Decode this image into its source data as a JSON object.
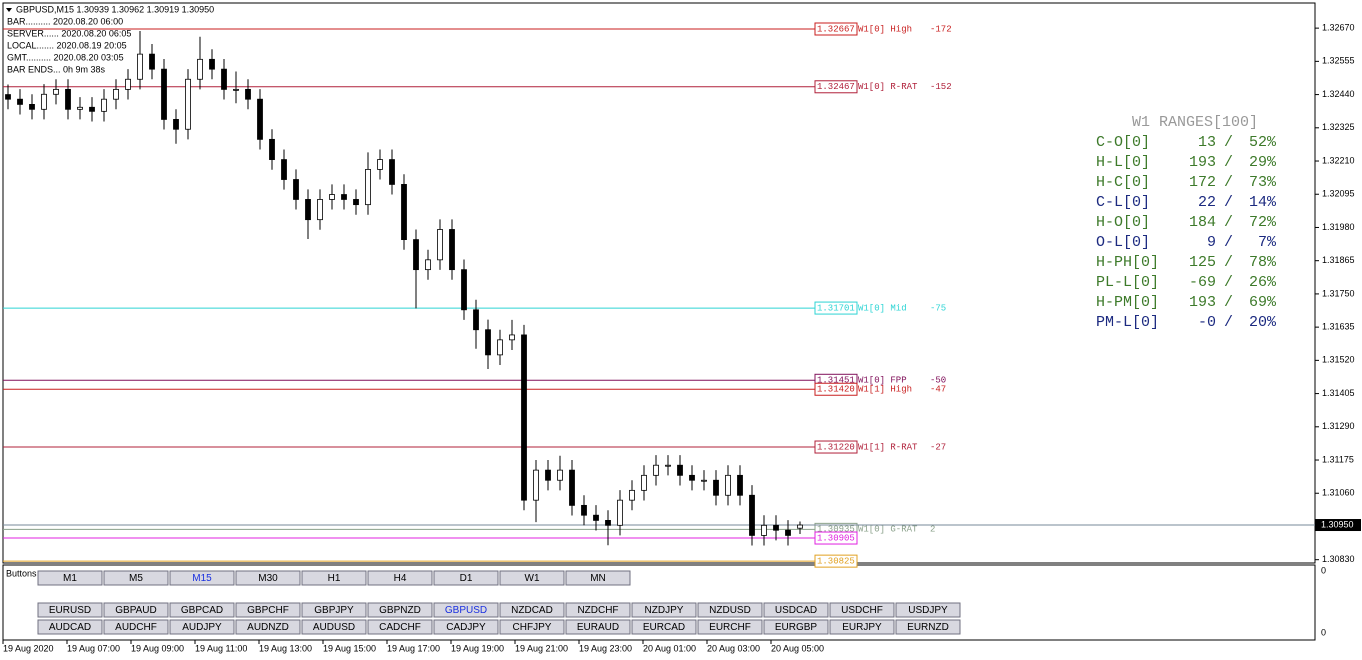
{
  "header": {
    "symbol": "GBPUSD,M15  1.30939 1.30962 1.30919 1.30950",
    "info": [
      "BAR.......... 2020.08.20 06:00",
      "SERVER...... 2020.08.20 06:05",
      "LOCAL....... 2020.08.19 20:05",
      "GMT.......... 2020.08.20 03:05",
      "BAR ENDS... 0h 9m 38s"
    ]
  },
  "chart_data": {
    "type": "candlestick",
    "open": [
      1.3244,
      1.32424,
      1.32406,
      1.32389,
      1.32441,
      1.32458,
      1.32389,
      1.32396,
      1.32382,
      1.32424,
      1.32458,
      1.32493,
      1.3258,
      1.32528,
      1.32354,
      1.3232,
      1.32493,
      1.32562,
      1.32528,
      1.32458,
      1.32458,
      1.32424,
      1.32285,
      1.32215,
      1.32146,
      1.32077,
      1.32007,
      1.32077,
      1.32094,
      1.32077,
      1.32059,
      1.32181,
      1.32215,
      1.32129,
      1.31938,
      1.31834,
      1.31868,
      1.31973,
      1.31834,
      1.31695,
      1.31626,
      1.31539,
      1.31591,
      1.31608,
      1.31036,
      1.3114,
      1.31105,
      1.3114,
      1.31018,
      1.30984,
      1.30966,
      1.30949,
      1.31036,
      1.3107,
      1.31122,
      1.31157,
      1.31157,
      1.31122,
      1.31105,
      1.31105,
      1.31053,
      1.31122,
      1.31053,
      1.30914,
      1.30949,
      1.30932,
      1.30939
    ],
    "high": [
      1.32475,
      1.32459,
      1.32441,
      1.32476,
      1.32493,
      1.32493,
      1.32431,
      1.32431,
      1.32459,
      1.32493,
      1.32528,
      1.3266,
      1.32615,
      1.32563,
      1.32389,
      1.32528,
      1.3264,
      1.32597,
      1.32563,
      1.3252,
      1.32493,
      1.32459,
      1.3232,
      1.3225,
      1.32181,
      1.32112,
      1.32112,
      1.32129,
      1.32129,
      1.32112,
      1.3224,
      1.3225,
      1.3225,
      1.32164,
      1.31973,
      1.31903,
      1.32008,
      1.32008,
      1.31869,
      1.3173,
      1.31661,
      1.31626,
      1.3166,
      1.31643,
      1.31175,
      1.31175,
      1.3119,
      1.31175,
      1.31053,
      1.31019,
      1.31001,
      1.31071,
      1.31105,
      1.31157,
      1.31192,
      1.31192,
      1.31192,
      1.31157,
      1.3114,
      1.3114,
      1.31157,
      1.31157,
      1.31088,
      1.30984,
      1.30984,
      1.30967,
      1.30962
    ],
    "low": [
      1.32389,
      1.32371,
      1.32354,
      1.32354,
      1.32406,
      1.32354,
      1.32354,
      1.32347,
      1.32347,
      1.32389,
      1.32423,
      1.32458,
      1.32493,
      1.32319,
      1.3227,
      1.32285,
      1.32458,
      1.32493,
      1.32423,
      1.3241,
      1.32389,
      1.3225,
      1.3218,
      1.32111,
      1.32042,
      1.3194,
      1.31972,
      1.32042,
      1.32042,
      1.32024,
      1.32024,
      1.32146,
      1.32094,
      1.31903,
      1.317,
      1.31799,
      1.31833,
      1.31799,
      1.3166,
      1.3156,
      1.3149,
      1.31504,
      1.31556,
      1.31001,
      1.3096,
      1.3107,
      1.3107,
      1.30983,
      1.30949,
      1.30931,
      1.3088,
      1.30914,
      1.31001,
      1.31035,
      1.31087,
      1.31122,
      1.31087,
      1.3107,
      1.3107,
      1.31018,
      1.31018,
      1.31018,
      1.30879,
      1.30879,
      1.30897,
      1.30879,
      1.30919
    ],
    "close": [
      1.32424,
      1.32406,
      1.32389,
      1.32441,
      1.32458,
      1.32389,
      1.32396,
      1.32382,
      1.32424,
      1.32458,
      1.32493,
      1.3258,
      1.32528,
      1.32354,
      1.3232,
      1.32493,
      1.32562,
      1.32528,
      1.32458,
      1.32458,
      1.32424,
      1.32285,
      1.32215,
      1.32146,
      1.32077,
      1.32007,
      1.32077,
      1.32094,
      1.32077,
      1.32059,
      1.32181,
      1.32215,
      1.32129,
      1.31938,
      1.31834,
      1.31868,
      1.31973,
      1.31834,
      1.31695,
      1.31626,
      1.31539,
      1.31591,
      1.31608,
      1.31036,
      1.3114,
      1.31105,
      1.3114,
      1.31018,
      1.30984,
      1.30966,
      1.30949,
      1.31036,
      1.3107,
      1.31122,
      1.31157,
      1.31157,
      1.31122,
      1.31105,
      1.31105,
      1.31053,
      1.31122,
      1.31053,
      1.30914,
      1.30949,
      1.30932,
      1.30914,
      1.3095
    ],
    "up_color": "#ffffff",
    "down_color": "#000000",
    "wick_color": "#000000",
    "ylim": [
      1.30822,
      1.32757
    ],
    "yticks": [
      {
        "value": 1.3267,
        "label": "1.32670"
      },
      1.32555,
      {
        "value": 1.3244,
        "label": "1.32440"
      },
      1.32325,
      {
        "value": 1.3221,
        "label": "1.32210"
      },
      1.32095,
      {
        "value": 1.3198,
        "label": "1.31980"
      },
      1.31865,
      {
        "value": 1.3175,
        "label": "1.31750"
      },
      1.31635,
      {
        "value": 1.3152,
        "label": "1.31520"
      },
      1.31405,
      {
        "value": 1.3129,
        "label": "1.31290"
      },
      1.31175,
      {
        "value": 1.3106,
        "label": "1.31060"
      },
      {
        "value": 1.3083,
        "label": "1.30830"
      }
    ],
    "current_price": {
      "value": 1.3095,
      "label": "1.30950"
    },
    "levels": [
      {
        "price": 1.32667,
        "name": "W1[0] High",
        "diff": -172,
        "color": "#c81e1e"
      },
      {
        "price": 1.32467,
        "name": "W1[0] R-RAT",
        "diff": -152,
        "color": "#b0203a"
      },
      {
        "price": 1.31701,
        "name": "W1[0] Mid",
        "diff": -75,
        "color": "#2cd4d4"
      },
      {
        "price": 1.31451,
        "name": "W1[0] FPP",
        "diff": -50,
        "color": "#80105a"
      },
      {
        "price": 1.3142,
        "price_label": "1.31420",
        "name": "W1[1] High",
        "diff": -47,
        "color": "#c81e1e"
      },
      {
        "price": 1.3122,
        "price_label": "1.31220",
        "name": "W1[1] R-RAT",
        "diff": -27,
        "color": "#b0203a"
      },
      {
        "price": 1.30935,
        "name": "W1[0] G-RAT",
        "diff": 2,
        "color": "#8aa08a"
      },
      {
        "price": 1.30905,
        "color": "#e020e0"
      },
      {
        "price": 1.30825,
        "color": "#e0a020"
      }
    ],
    "x_labels": [
      "19 Aug 2020",
      "19 Aug 07:00",
      "19 Aug 09:00",
      "19 Aug 11:00",
      "19 Aug 13:00",
      "19 Aug 15:00",
      "19 Aug 17:00",
      "19 Aug 19:00",
      "19 Aug 21:00",
      "19 Aug 23:00",
      "20 Aug 01:00",
      "20 Aug 03:00",
      "20 Aug 05:00"
    ],
    "subwindow_yticks": [
      0,
      0
    ]
  },
  "ranges": {
    "title": "W1 RANGES[100]",
    "separator": "/",
    "rows": [
      {
        "label": "C-O[0]",
        "value": 13,
        "pct": 52,
        "pct_label": "52%",
        "color": "#3d7a2a"
      },
      {
        "label": "H-L[0]",
        "value": 193,
        "pct": 29,
        "pct_label": "29%",
        "color": "#3d7a2a"
      },
      {
        "label": "H-C[0]",
        "value": 172,
        "pct": 73,
        "pct_label": "73%",
        "color": "#3d7a2a"
      },
      {
        "label": "C-L[0]",
        "value": 22,
        "pct": 14,
        "pct_label": "14%",
        "color": "#1c2a80"
      },
      {
        "label": "H-O[0]",
        "value": 184,
        "pct": 72,
        "pct_label": "72%",
        "color": "#3d7a2a"
      },
      {
        "label": "O-L[0]",
        "value": 9,
        "pct": 7,
        "pct_label": "7%",
        "color": "#1c2a80"
      },
      {
        "label": "H-PH[0]",
        "value": 125,
        "pct": 78,
        "pct_label": "78%",
        "color": "#3d7a2a"
      },
      {
        "label": "PL-L[0]",
        "value": -69,
        "pct": 26,
        "pct_label": "26%",
        "color": "#3d7a2a"
      },
      {
        "label": "H-PM[0]",
        "value": 193,
        "pct": 69,
        "pct_label": "69%",
        "color": "#3d7a2a"
      },
      {
        "label": "PM-L[0]",
        "value": 0,
        "value_label": "-0",
        "pct": 20,
        "pct_label": "20%",
        "color": "#1c2a80"
      }
    ]
  },
  "buttons": {
    "caption": "Buttons",
    "timeframes": [
      "M1",
      "M5",
      "M15",
      "M30",
      "H1",
      "H4",
      "D1",
      "W1",
      "MN"
    ],
    "selected_timeframe": 2,
    "symbols": [
      "EURUSD",
      "GBPAUD",
      "GBPCAD",
      "GBPCHF",
      "GBPJPY",
      "GBPNZD",
      "GBPUSD",
      "NZDCAD",
      "NZDCHF",
      "NZDJPY",
      "NZDUSD",
      "USDCAD",
      "USDCHF",
      "USDJPY",
      "AUDCAD",
      "AUDCHF",
      "AUDJPY",
      "AUDNZD",
      "AUDUSD",
      "CADCHF",
      "CADJPY",
      "CHFJPY",
      "EURAUD",
      "EURCAD",
      "EURCHF",
      "EURGBP",
      "EURJPY",
      "EURNZD"
    ],
    "selected_symbol": 6
  }
}
